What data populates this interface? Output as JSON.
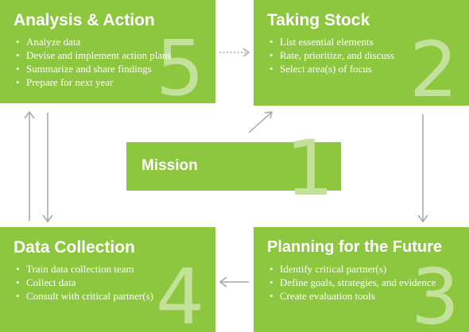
{
  "boxes": {
    "analysis": {
      "title": "Analysis & Action",
      "number": "5",
      "items": [
        "Analyze data",
        "Devise and implement action plans",
        "Summarize and share findings",
        "Prepare for next year"
      ]
    },
    "taking_stock": {
      "title": "Taking Stock",
      "number": "2",
      "items": [
        "List essential elements",
        "Rate, prioritize, and discuss",
        "Select area(s) of focus"
      ]
    },
    "mission": {
      "title": "Mission",
      "number": "1"
    },
    "data_collection": {
      "title": "Data Collection",
      "number": "4",
      "items": [
        "Train data collection team",
        "Collect data",
        "Consult with critical partner(s)"
      ]
    },
    "planning": {
      "title": "Planning for the Future",
      "number": "3",
      "items": [
        "Identify critical partner(s)",
        "Define goals, strategies, and evidence",
        "Create evaluation tools"
      ]
    }
  },
  "colors": {
    "box": "#8dc63f",
    "number": "#c3e19a",
    "arrow": "#a6a6a6",
    "text": "#ffffff"
  }
}
